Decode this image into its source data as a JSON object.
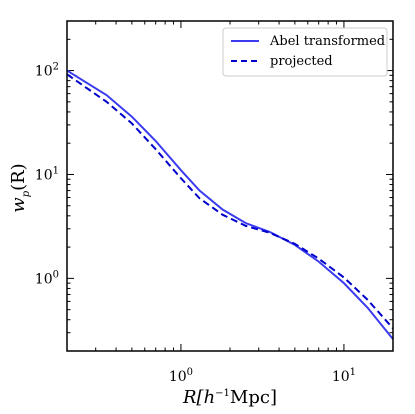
{
  "chart_data": {
    "type": "line",
    "title": "",
    "xlabel": {
      "main": "R[h",
      "sup": "−1",
      "tail": "Mpc]"
    },
    "ylabel": {
      "main": "w",
      "sub": "p",
      "tail": "(R)"
    },
    "xscale": "log",
    "yscale": "log",
    "xlim": [
      0.2,
      20
    ],
    "ylim": [
      0.2,
      300
    ],
    "x_ticks": [
      {
        "value": 1,
        "base": "10",
        "exp": "0"
      },
      {
        "value": 10,
        "base": "10",
        "exp": "1"
      }
    ],
    "y_ticks": [
      {
        "value": 1,
        "base": "10",
        "exp": "0"
      },
      {
        "value": 10,
        "base": "10",
        "exp": "1"
      },
      {
        "value": 100,
        "base": "10",
        "exp": "2"
      }
    ],
    "grid": false,
    "legend_position": "top-right",
    "series": [
      {
        "name": "Abel transformed",
        "color": "#3b3bf0",
        "style": "solid",
        "x": [
          0.2,
          0.35,
          0.5,
          0.7,
          1.0,
          1.3,
          1.8,
          2.5,
          3.5,
          5.0,
          7.0,
          10.0,
          14.0,
          20.0
        ],
        "y": [
          100,
          58,
          36,
          21,
          11.0,
          7.0,
          4.6,
          3.4,
          2.8,
          2.1,
          1.45,
          0.9,
          0.52,
          0.26
        ]
      },
      {
        "name": "projected",
        "color": "#0000cc",
        "style": "dashed",
        "x": [
          0.2,
          0.35,
          0.5,
          0.7,
          1.0,
          1.3,
          1.8,
          2.5,
          3.5,
          5.0,
          7.0,
          10.0,
          14.0,
          20.0
        ],
        "y": [
          92,
          50,
          31,
          17.5,
          9.2,
          5.9,
          4.1,
          3.2,
          2.75,
          2.15,
          1.55,
          1.02,
          0.62,
          0.33
        ]
      }
    ]
  }
}
